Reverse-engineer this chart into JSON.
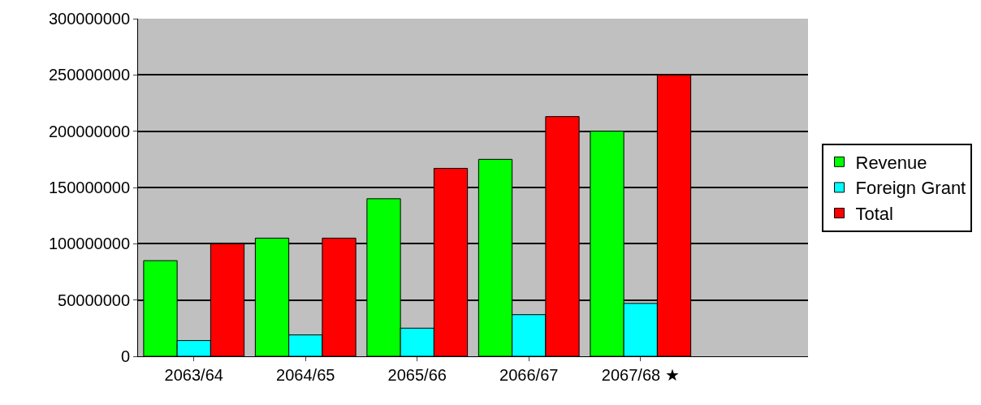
{
  "chart_data": {
    "type": "bar",
    "categories": [
      "2063/64",
      "2064/65",
      "2065/66",
      "2066/67",
      "2067/68 ★",
      null
    ],
    "series": [
      {
        "name": "Revenue",
        "color": "#00ff00",
        "values": [
          85000000,
          105000000,
          140000000,
          175000000,
          200000000,
          null
        ]
      },
      {
        "name": "Foreign Grant",
        "color": "#00ffff",
        "values": [
          14000000,
          19000000,
          25000000,
          37000000,
          47000000,
          null
        ]
      },
      {
        "name": "Total",
        "color": "#ff0000",
        "values": [
          100000000,
          105000000,
          167000000,
          213000000,
          250000000,
          null
        ]
      }
    ],
    "ylim": [
      0,
      300000000
    ],
    "yticks": [
      0,
      50000000,
      100000000,
      150000000,
      200000000,
      250000000,
      300000000
    ],
    "grid": "y",
    "legend": "right"
  }
}
